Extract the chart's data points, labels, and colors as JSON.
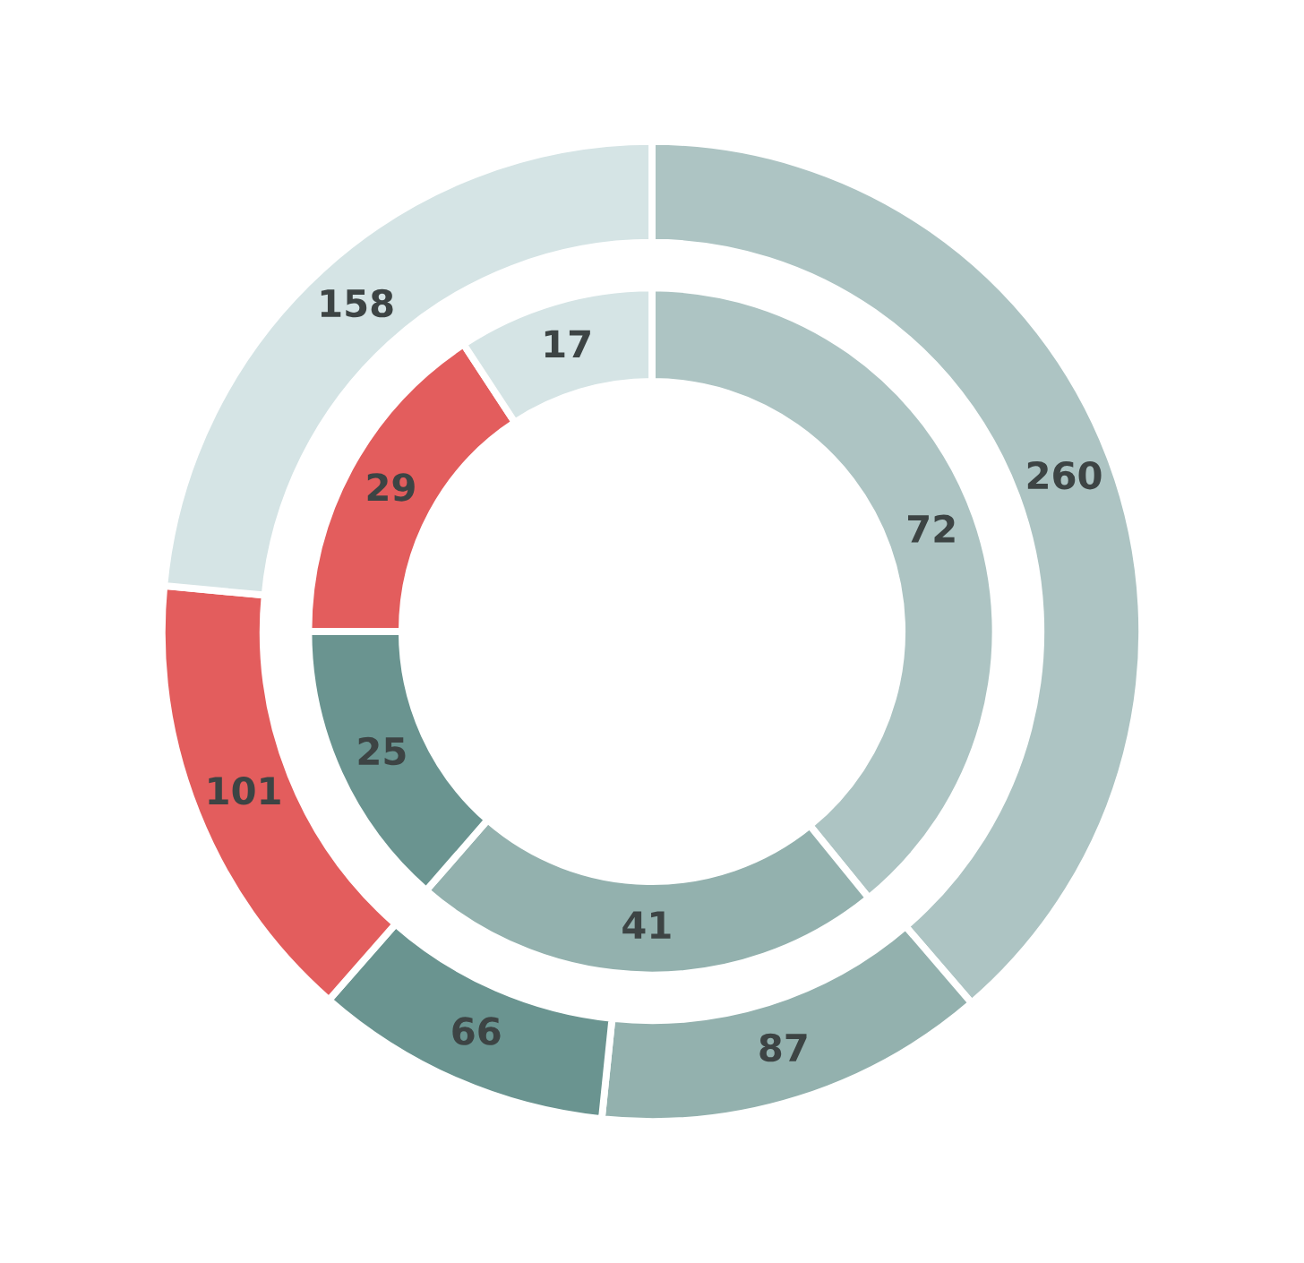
{
  "chart_data": {
    "type": "donut",
    "data_labels": true,
    "series": [
      {
        "values": [
          260,
          87,
          66,
          101,
          158
        ],
        "colors": [
          "#adc4c3",
          "#93b1ae",
          "#6a9490",
          "#e35d5d",
          "#d5e4e5"
        ]
      },
      {
        "values": [
          72,
          41,
          25,
          29,
          17
        ],
        "colors": [
          "#adc4c3",
          "#93b1ae",
          "#6a9490",
          "#e35d5d",
          "#d5e4e5"
        ]
      }
    ]
  }
}
